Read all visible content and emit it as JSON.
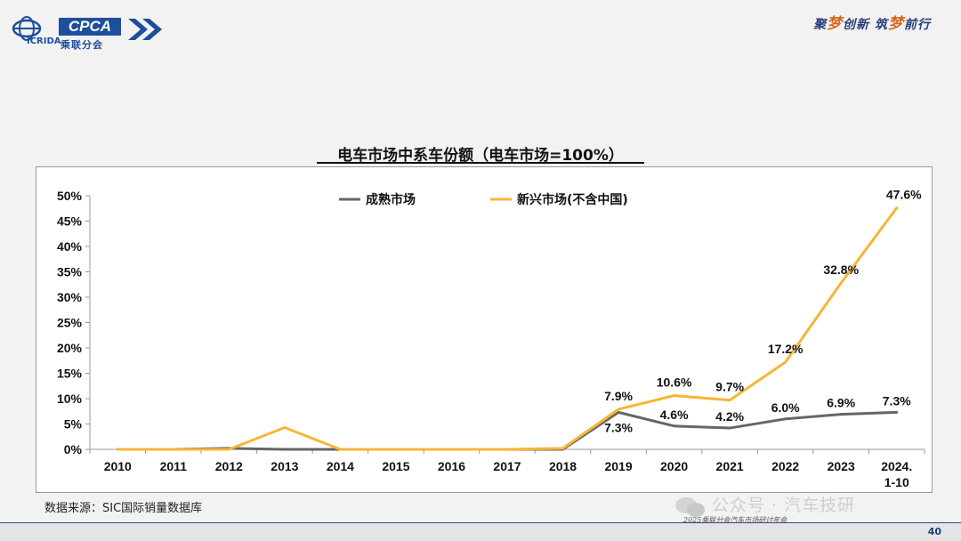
{
  "header": {
    "logo_text": "CPCA",
    "logo_sub_left": "ICRIDA",
    "logo_sub_right": "乘联分会",
    "slogan_parts": [
      "聚",
      "梦",
      "创新 筑",
      "梦",
      "前行"
    ]
  },
  "colors": {
    "mature": "#666666",
    "emerging": "#f7b538",
    "brand": "#1c4f9c"
  },
  "chart_data": {
    "type": "line",
    "title": "电车市场中系车份额（电车市场=100%）",
    "categories": [
      "2010",
      "2011",
      "2012",
      "2013",
      "2014",
      "2015",
      "2016",
      "2017",
      "2018",
      "2019",
      "2020",
      "2021",
      "2022",
      "2023",
      "2024.\n1-10"
    ],
    "ylim": [
      0,
      50
    ],
    "yticks": [
      "0%",
      "5%",
      "10%",
      "15%",
      "20%",
      "25%",
      "30%",
      "35%",
      "40%",
      "45%",
      "50%"
    ],
    "legend_position": "top",
    "grid": false,
    "series": [
      {
        "name": "成熟市场",
        "color": "#666666",
        "values": [
          0,
          0,
          0.2,
          0,
          0,
          0,
          0,
          0,
          0,
          7.3,
          4.6,
          4.2,
          6.0,
          6.9,
          7.3
        ],
        "labels": [
          "",
          "",
          "",
          "",
          "",
          "",
          "",
          "",
          "",
          "7.3%",
          "4.6%",
          "4.2%",
          "6.0%",
          "6.9%",
          "7.3%"
        ]
      },
      {
        "name": "新兴市场(不含中国)",
        "color": "#f7b538",
        "values": [
          0,
          0,
          0,
          4.3,
          0,
          0,
          0,
          0,
          0.2,
          7.9,
          10.6,
          9.7,
          17.2,
          32.8,
          47.6
        ],
        "labels": [
          "",
          "",
          "",
          "",
          "",
          "",
          "",
          "",
          "",
          "7.9%",
          "10.6%",
          "9.7%",
          "17.2%",
          "32.8%",
          "47.6%"
        ]
      }
    ]
  },
  "source": "数据来源：SIC国际销量数据库",
  "watermark": "公众号 · 汽车技研",
  "footer_text": "2025乘联分会汽车市场研讨年会",
  "page_number": "40"
}
